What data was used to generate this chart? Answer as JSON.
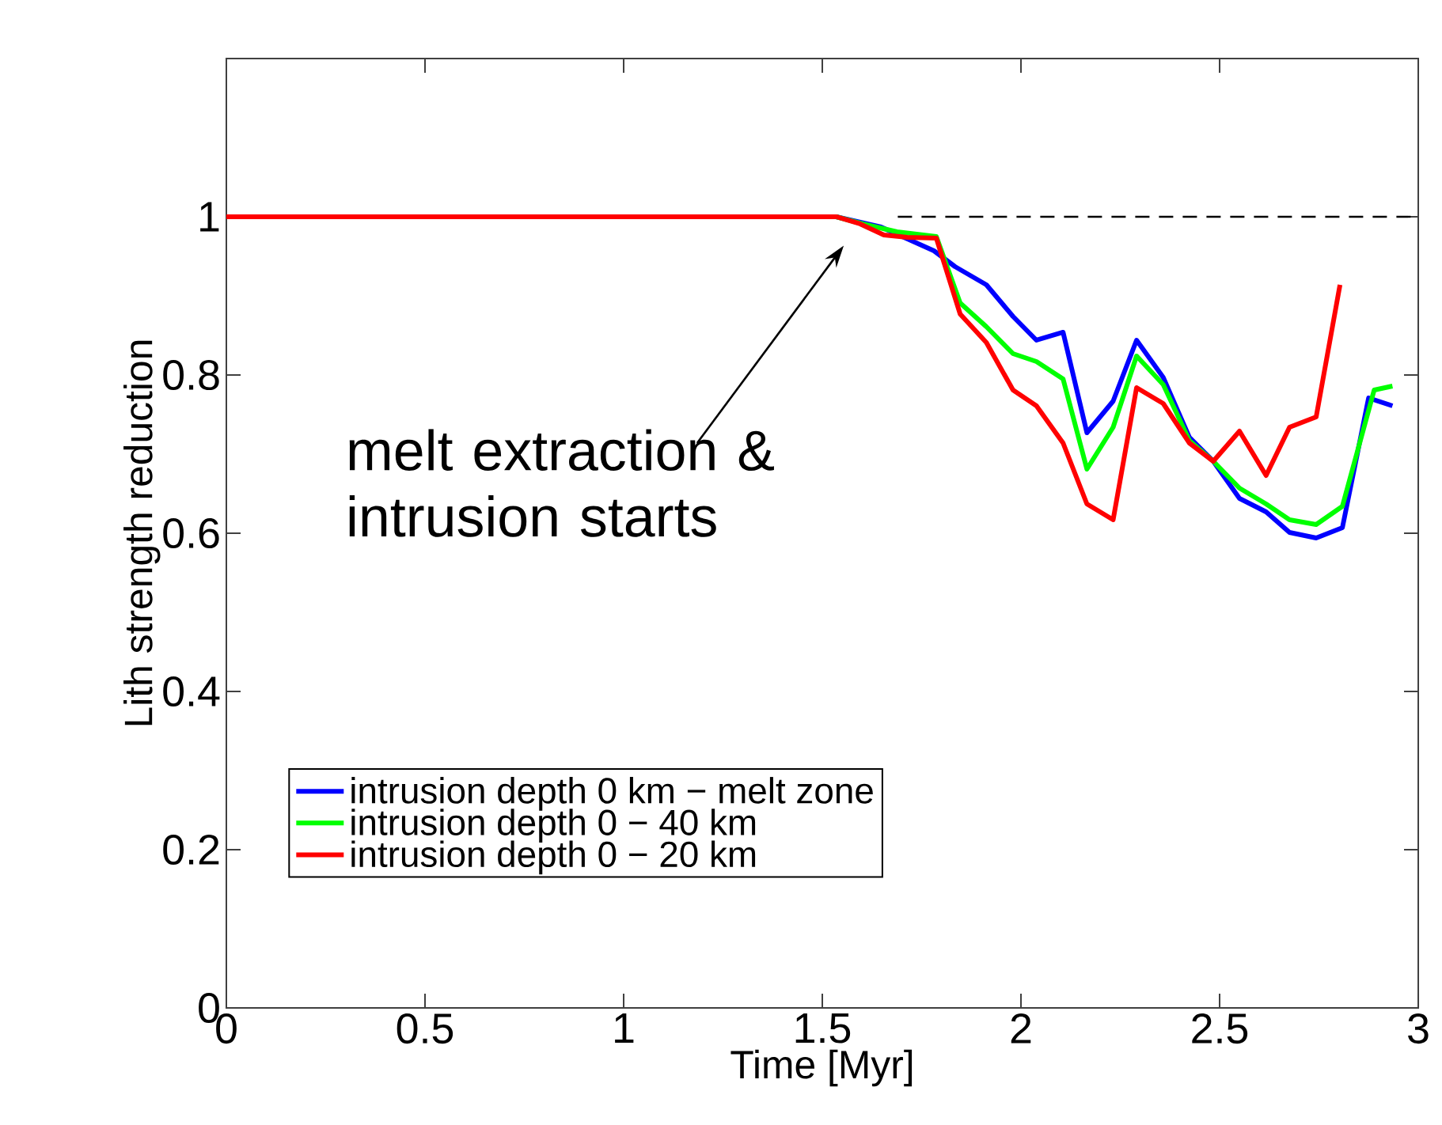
{
  "chart_data": {
    "type": "line",
    "xlabel": "Time [Myr]",
    "ylabel": "Lith strength reduction",
    "xlim": [
      0,
      3
    ],
    "ylim": [
      0,
      1.2
    ],
    "xticks": [
      0,
      0.5,
      1,
      1.5,
      2,
      2.5,
      3
    ],
    "yticks": [
      0,
      0.2,
      0.4,
      0.6,
      0.8,
      1
    ],
    "legend": "bottom left",
    "grid": false,
    "marker": "none",
    "line_style": "solid",
    "annotations": [
      "melt extraction & intrusion starts"
    ],
    "series": [
      {
        "name": "intrusion depth 0 km − melt zone",
        "color": "#0000ff",
        "x": [
          0,
          1.535,
          1.648,
          1.781,
          1.834,
          1.913,
          1.98,
          2.039,
          2.106,
          2.166,
          2.232,
          2.291,
          2.358,
          2.424,
          2.484,
          2.55,
          2.617,
          2.676,
          2.743,
          2.809,
          2.875,
          2.935
        ],
        "values": [
          1,
          1,
          0.987,
          0.957,
          0.937,
          0.914,
          0.874,
          0.844,
          0.854,
          0.727,
          0.767,
          0.844,
          0.797,
          0.721,
          0.691,
          0.644,
          0.627,
          0.601,
          0.594,
          0.607,
          0.771,
          0.761
        ]
      },
      {
        "name": "intrusion depth 0 − 40 km",
        "color": "#00ff00",
        "x": [
          0,
          1.535,
          1.602,
          1.688,
          1.787,
          1.847,
          1.913,
          1.98,
          2.039,
          2.106,
          2.166,
          2.232,
          2.291,
          2.358,
          2.424,
          2.484,
          2.55,
          2.617,
          2.676,
          2.743,
          2.809,
          2.889,
          2.935
        ],
        "values": [
          1,
          1,
          0.991,
          0.981,
          0.975,
          0.891,
          0.861,
          0.827,
          0.817,
          0.795,
          0.681,
          0.734,
          0.824,
          0.788,
          0.717,
          0.691,
          0.657,
          0.637,
          0.617,
          0.611,
          0.634,
          0.781,
          0.786
        ]
      },
      {
        "name": "intrusion depth 0 − 20 km",
        "color": "#ff0000",
        "x": [
          0,
          1.535,
          1.595,
          1.655,
          1.714,
          1.787,
          1.847,
          1.913,
          1.98,
          2.039,
          2.106,
          2.166,
          2.232,
          2.291,
          2.358,
          2.424,
          2.484,
          2.55,
          2.617,
          2.676,
          2.743,
          2.803
        ],
        "values": [
          1,
          1,
          0.991,
          0.977,
          0.974,
          0.973,
          0.877,
          0.841,
          0.781,
          0.761,
          0.714,
          0.637,
          0.617,
          0.784,
          0.764,
          0.714,
          0.691,
          0.729,
          0.673,
          0.734,
          0.747,
          0.914
        ]
      },
      {
        "color": "#000000",
        "line_style": "dashed",
        "x": [
          1.69,
          3
        ],
        "values": [
          1,
          1
        ]
      }
    ]
  }
}
